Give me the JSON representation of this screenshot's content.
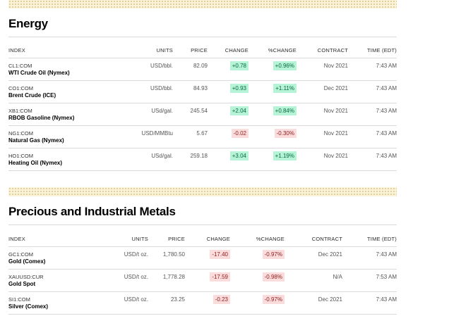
{
  "sections": [
    {
      "title": "Energy",
      "headers": [
        "INDEX",
        "UNITS",
        "PRICE",
        "CHANGE",
        "%CHANGE",
        "CONTRACT",
        "TIME (EDT)"
      ],
      "rows": [
        {
          "symbol": "CL1:COM",
          "name": "WTI Crude Oil (Nymex)",
          "units": "USD/bbl.",
          "price": "82.09",
          "change": "+0.78",
          "pct": "+0.96%",
          "contract": "Nov 2021",
          "time": "7:43 AM",
          "dir": "pos"
        },
        {
          "symbol": "CO1:COM",
          "name": "Brent Crude (ICE)",
          "units": "USD/bbl.",
          "price": "84.93",
          "change": "+0.93",
          "pct": "+1.11%",
          "contract": "Dec 2021",
          "time": "7:43 AM",
          "dir": "pos"
        },
        {
          "symbol": "XB1:COM",
          "name": "RBOB Gasoline (Nymex)",
          "units": "USd/gal.",
          "price": "245.54",
          "change": "+2.04",
          "pct": "+0.84%",
          "contract": "Nov 2021",
          "time": "7:43 AM",
          "dir": "pos"
        },
        {
          "symbol": "NG1:COM",
          "name": "Natural Gas (Nymex)",
          "units": "USD/MMBtu",
          "price": "5.67",
          "change": "-0.02",
          "pct": "-0.30%",
          "contract": "Nov 2021",
          "time": "7:43 AM",
          "dir": "neg"
        },
        {
          "symbol": "HO1:COM",
          "name": "Heating Oil (Nymex)",
          "units": "USd/gal.",
          "price": "259.18",
          "change": "+3.04",
          "pct": "+1.19%",
          "contract": "Nov 2021",
          "time": "7:43 AM",
          "dir": "pos"
        }
      ]
    },
    {
      "title": "Precious and Industrial Metals",
      "headers": [
        "INDEX",
        "UNITS",
        "PRICE",
        "CHANGE",
        "%CHANGE",
        "CONTRACT",
        "TIME (EDT)"
      ],
      "rows": [
        {
          "symbol": "GC1:COM",
          "name": "Gold (Comex)",
          "units": "USD/t oz.",
          "price": "1,780.50",
          "change": "-17.40",
          "pct": "-0.97%",
          "contract": "Dec 2021",
          "time": "7:43 AM",
          "dir": "neg"
        },
        {
          "symbol": "XAUUSD:CUR",
          "name": "Gold Spot",
          "units": "USD/t oz.",
          "price": "1,778.28",
          "change": "-17.59",
          "pct": "-0.98%",
          "contract": "N/A",
          "time": "7:53 AM",
          "dir": "neg"
        },
        {
          "symbol": "SI1:COM",
          "name": "Silver (Comex)",
          "units": "USD/t oz.",
          "price": "23.25",
          "change": "-0.23",
          "pct": "-0.97%",
          "contract": "Dec 2021",
          "time": "7:43 AM",
          "dir": "neg"
        }
      ]
    }
  ]
}
